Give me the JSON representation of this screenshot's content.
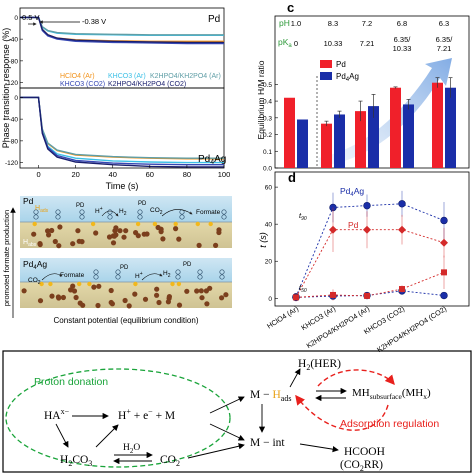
{
  "figure": {
    "panel_a": {
      "top_label": "Pd",
      "bottom_label": "Pd4Ag",
      "step_start": "0.5 V",
      "step_end": "-0.38 V",
      "ylabel": "Phase transition response (%)",
      "xlabel": "Time (s)",
      "xticks": [
        "0",
        "20",
        "40",
        "60",
        "80",
        "100"
      ],
      "top_yticks": [
        "0",
        "-40",
        "-80",
        "-120"
      ],
      "bottom_yticks": [
        "0",
        "-40",
        "-80",
        "-120"
      ],
      "legend": [
        {
          "name": "HClO4 (Ar)",
          "color": "#f2931b"
        },
        {
          "name": "KHCO3 (Ar)",
          "color": "#3cc0e6"
        },
        {
          "name": "K2HPO4/KH2PO4 (Ar)",
          "color": "#5f9ea6"
        },
        {
          "name": "KHCO3 (CO2)",
          "color": "#3647b4"
        },
        {
          "name": "K2HPO4/KH2PO4 (CO2)",
          "color": "#1a1f6e"
        }
      ],
      "top_plateaus": [
        -44,
        -33,
        -32,
        -48,
        -46
      ],
      "bottom_plateaus": [
        -113,
        -120,
        -112,
        -124,
        -128
      ]
    },
    "panel_b": {
      "side_label": "promoted formate production",
      "bottom_caption": "Constant potential (equilibrium condition)",
      "top_box": {
        "catalyst": "Pd",
        "labels": [
          "Hads",
          "Habs",
          "H+",
          "H2",
          "CO2",
          "Formate",
          "PD",
          "PD"
        ]
      },
      "bottom_box": {
        "catalyst": "Pd4Ag",
        "labels": [
          "CO2",
          "Formate",
          "H+",
          "H2",
          "PD",
          "PD"
        ]
      }
    },
    "panel_c": {
      "letter": "c",
      "ylabel": "Equilibrium H/M ratio",
      "yticks": [
        "0.0",
        "0.1",
        "0.2",
        "0.3",
        "0.4",
        "0.5"
      ],
      "ph_label": "pH",
      "pka_label": "pKa",
      "ph_values": [
        "1.0",
        "8.3",
        "7.2",
        "6.8",
        "6.3"
      ],
      "pka_values": [
        "0",
        "10.33",
        "7.21",
        "6.35/\n10.33",
        "6.35/\n7.21"
      ],
      "legend": [
        {
          "name": "Pd",
          "color": "#f0202a"
        },
        {
          "name": "Pd4Ag",
          "color": "#1a2ea8"
        }
      ]
    },
    "panel_d": {
      "letter": "d",
      "ylabel": "t (s)",
      "yticks": [
        "0",
        "20",
        "40",
        "60"
      ],
      "t90_label": "t90",
      "t50_label": "t50",
      "series_labels": {
        "pd4ag": "Pd4Ag",
        "pd": "Pd"
      },
      "categories": [
        "HClO4 (Ar)",
        "KHCO3 (Ar)",
        "K2HPO4/KH2PO4 (Ar)",
        "KHCO3 (CO2)",
        "K2HPO4/KH2PO4 (CO2)"
      ]
    },
    "panel_e": {
      "proton_donation": "Proton donation",
      "adsorption_regulation": "Adsorption regulation",
      "ha": "HA",
      "ha_charge": "x−",
      "h2co3": "H2CO3",
      "h2o": "H2O",
      "co2": "CO2",
      "hplus_eq": "H+ + e− + M",
      "m_hads": "M − Hads",
      "m_int": "M − int",
      "her": "H2(HER)",
      "mh_sub": "MHsubsurface(MHx)",
      "hcooh": "HCOOH",
      "co2rr": "(CO2RR)"
    }
  },
  "chart_data": [
    {
      "type": "line",
      "title": "",
      "panel": "a-top (Pd)",
      "xlabel": "Time (s)",
      "ylabel": "Phase transition response (%)",
      "xlim": [
        -10,
        100
      ],
      "ylim": [
        -130,
        10
      ],
      "series": [
        {
          "name": "HClO4 (Ar)",
          "x": [
            -10,
            0,
            2,
            5,
            10,
            20,
            40,
            60,
            80,
            100
          ],
          "values": [
            0,
            0,
            -22,
            -32,
            -38,
            -41,
            -43,
            -44,
            -44,
            -44
          ]
        },
        {
          "name": "KHCO3 (Ar)",
          "x": [
            -10,
            0,
            2,
            5,
            10,
            20,
            40,
            60,
            80,
            100
          ],
          "values": [
            0,
            0,
            -18,
            -25,
            -29,
            -31,
            -32,
            -33,
            -33,
            -33
          ]
        },
        {
          "name": "K2HPO4/KH2PO4 (Ar)",
          "x": [
            -10,
            0,
            2,
            5,
            10,
            20,
            40,
            60,
            80,
            100
          ],
          "values": [
            0,
            0,
            -17,
            -24,
            -28,
            -30,
            -31,
            -32,
            -32,
            -32
          ]
        },
        {
          "name": "KHCO3 (CO2)",
          "x": [
            -10,
            0,
            2,
            5,
            10,
            20,
            40,
            60,
            80,
            100
          ],
          "values": [
            0,
            0,
            -24,
            -34,
            -40,
            -44,
            -46,
            -47,
            -48,
            -48
          ]
        },
        {
          "name": "K2HPO4/KH2PO4 (CO2)",
          "x": [
            -10,
            0,
            2,
            5,
            10,
            20,
            40,
            60,
            80,
            100
          ],
          "values": [
            0,
            0,
            -22,
            -32,
            -38,
            -42,
            -44,
            -45,
            -46,
            -46
          ]
        }
      ]
    },
    {
      "type": "line",
      "title": "",
      "panel": "a-bottom (Pd4Ag)",
      "xlabel": "Time (s)",
      "ylabel": "Phase transition response (%)",
      "xlim": [
        -10,
        100
      ],
      "ylim": [
        -130,
        10
      ],
      "series": [
        {
          "name": "HClO4 (Ar)",
          "x": [
            -10,
            0,
            2,
            5,
            10,
            20,
            40,
            60,
            80,
            100
          ],
          "values": [
            0,
            0,
            -60,
            -85,
            -98,
            -106,
            -110,
            -112,
            -113,
            -113
          ]
        },
        {
          "name": "KHCO3 (Ar)",
          "x": [
            -10,
            0,
            2,
            5,
            10,
            20,
            40,
            60,
            80,
            100
          ],
          "values": [
            0,
            0,
            -62,
            -90,
            -104,
            -112,
            -117,
            -119,
            -120,
            -120
          ]
        },
        {
          "name": "K2HPO4/KH2PO4 (Ar)",
          "x": [
            -10,
            0,
            2,
            5,
            10,
            20,
            40,
            60,
            80,
            100
          ],
          "values": [
            0,
            0,
            -58,
            -84,
            -97,
            -105,
            -109,
            -111,
            -112,
            -112
          ]
        },
        {
          "name": "KHCO3 (CO2)",
          "x": [
            -10,
            0,
            2,
            5,
            10,
            20,
            40,
            60,
            80,
            100
          ],
          "values": [
            0,
            0,
            -64,
            -92,
            -107,
            -116,
            -121,
            -123,
            -124,
            -124
          ]
        },
        {
          "name": "K2HPO4/KH2PO4 (CO2)",
          "x": [
            -10,
            0,
            2,
            5,
            10,
            20,
            40,
            60,
            80,
            100
          ],
          "values": [
            0,
            0,
            -66,
            -95,
            -110,
            -119,
            -124,
            -127,
            -128,
            -128
          ]
        }
      ]
    },
    {
      "type": "bar",
      "title": "",
      "panel": "c",
      "ylabel": "Equilibrium H/M ratio",
      "ylim": [
        0,
        0.55
      ],
      "categories": [
        "HClO4 (Ar)",
        "KHCO3 (Ar)",
        "K2HPO4/KH2PO4 (Ar)",
        "KHCO3 (CO2)",
        "K2HPO4/KH2PO4 (CO2)"
      ],
      "series": [
        {
          "name": "Pd",
          "values": [
            0.42,
            0.265,
            0.34,
            0.48,
            0.51
          ],
          "errors": [
            0,
            0.015,
            0.06,
            0.005,
            0.03
          ]
        },
        {
          "name": "Pd4Ag",
          "values": [
            0.29,
            0.32,
            0.37,
            0.38,
            0.48
          ],
          "errors": [
            0,
            0.02,
            0.07,
            0.03,
            0.06
          ]
        }
      ]
    },
    {
      "type": "scatter",
      "title": "",
      "panel": "d",
      "ylabel": "t (s)",
      "ylim": [
        -2,
        66
      ],
      "categories": [
        "HClO4 (Ar)",
        "KHCO3 (Ar)",
        "K2HPO4/KH2PO4 (Ar)",
        "KHCO3 (CO2)",
        "K2HPO4/KH2PO4 (CO2)"
      ],
      "series": [
        {
          "name": "Pd4Ag t90",
          "values": [
            0.8,
            49,
            50,
            51,
            42
          ]
        },
        {
          "name": "Pd t90",
          "values": [
            0.5,
            37,
            37,
            37,
            30
          ]
        },
        {
          "name": "Pd4Ag t50",
          "values": [
            0.5,
            1.2,
            1.5,
            4,
            1.5
          ]
        },
        {
          "name": "Pd t50",
          "values": [
            0.5,
            1.8,
            1.3,
            5,
            14
          ]
        }
      ]
    }
  ]
}
